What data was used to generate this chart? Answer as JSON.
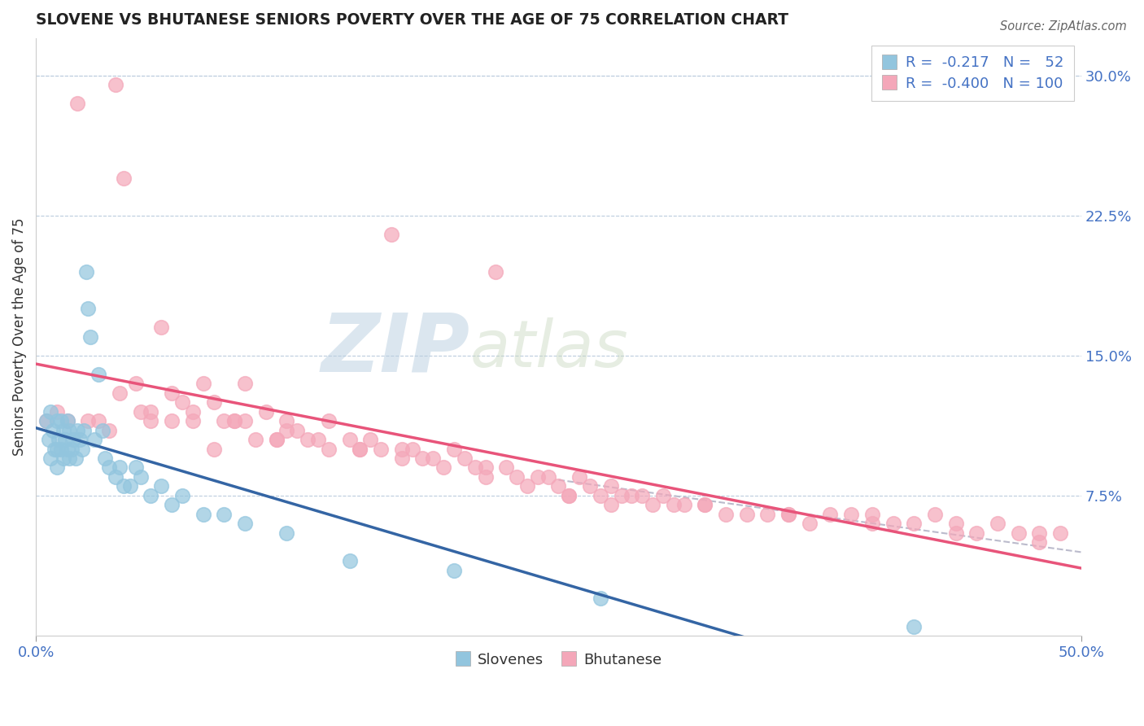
{
  "title": "SLOVENE VS BHUTANESE SENIORS POVERTY OVER THE AGE OF 75 CORRELATION CHART",
  "source": "Source: ZipAtlas.com",
  "ylabel": "Seniors Poverty Over the Age of 75",
  "right_yticks": [
    "7.5%",
    "15.0%",
    "22.5%",
    "30.0%"
  ],
  "right_ytick_vals": [
    0.075,
    0.15,
    0.225,
    0.3
  ],
  "legend_label1": "Slovenes",
  "legend_label2": "Bhutanese",
  "legend_R1_val": "-0.217",
  "legend_N1_val": "52",
  "legend_R2_val": "-0.400",
  "legend_N2_val": "100",
  "color_slovene": "#92C5DE",
  "color_bhutanese": "#F4A7B9",
  "color_line_slovene": "#3465A4",
  "color_line_bhutanese": "#E8547A",
  "color_line_combined": "#BBBBCC",
  "watermark": "ZIPatlas",
  "xlim": [
    0.0,
    0.5
  ],
  "ylim": [
    0.0,
    0.32
  ],
  "slovene_x": [
    0.005,
    0.006,
    0.007,
    0.007,
    0.008,
    0.009,
    0.01,
    0.01,
    0.01,
    0.011,
    0.012,
    0.012,
    0.013,
    0.013,
    0.014,
    0.015,
    0.015,
    0.016,
    0.016,
    0.017,
    0.018,
    0.019,
    0.02,
    0.021,
    0.022,
    0.023,
    0.024,
    0.025,
    0.026,
    0.028,
    0.03,
    0.032,
    0.033,
    0.035,
    0.038,
    0.04,
    0.042,
    0.045,
    0.048,
    0.05,
    0.055,
    0.06,
    0.065,
    0.07,
    0.08,
    0.09,
    0.1,
    0.12,
    0.15,
    0.2,
    0.27,
    0.42
  ],
  "slovene_y": [
    0.115,
    0.105,
    0.12,
    0.095,
    0.11,
    0.1,
    0.115,
    0.1,
    0.09,
    0.105,
    0.115,
    0.1,
    0.11,
    0.095,
    0.105,
    0.115,
    0.1,
    0.11,
    0.095,
    0.1,
    0.105,
    0.095,
    0.11,
    0.105,
    0.1,
    0.11,
    0.195,
    0.175,
    0.16,
    0.105,
    0.14,
    0.11,
    0.095,
    0.09,
    0.085,
    0.09,
    0.08,
    0.08,
    0.09,
    0.085,
    0.075,
    0.08,
    0.07,
    0.075,
    0.065,
    0.065,
    0.06,
    0.055,
    0.04,
    0.035,
    0.02,
    0.005
  ],
  "bhutanese_x": [
    0.038,
    0.042,
    0.04,
    0.048,
    0.05,
    0.055,
    0.06,
    0.065,
    0.065,
    0.07,
    0.075,
    0.08,
    0.085,
    0.085,
    0.09,
    0.095,
    0.1,
    0.1,
    0.105,
    0.11,
    0.115,
    0.12,
    0.12,
    0.125,
    0.13,
    0.14,
    0.14,
    0.15,
    0.155,
    0.16,
    0.165,
    0.17,
    0.175,
    0.18,
    0.185,
    0.19,
    0.2,
    0.205,
    0.21,
    0.215,
    0.22,
    0.225,
    0.23,
    0.24,
    0.245,
    0.25,
    0.255,
    0.26,
    0.265,
    0.27,
    0.275,
    0.28,
    0.285,
    0.29,
    0.295,
    0.3,
    0.305,
    0.31,
    0.32,
    0.33,
    0.34,
    0.35,
    0.36,
    0.37,
    0.38,
    0.39,
    0.4,
    0.41,
    0.42,
    0.43,
    0.44,
    0.45,
    0.46,
    0.47,
    0.48,
    0.005,
    0.01,
    0.015,
    0.02,
    0.025,
    0.03,
    0.035,
    0.055,
    0.075,
    0.095,
    0.115,
    0.135,
    0.155,
    0.175,
    0.195,
    0.215,
    0.235,
    0.255,
    0.275,
    0.32,
    0.36,
    0.4,
    0.44,
    0.48,
    0.49
  ],
  "bhutanese_y": [
    0.295,
    0.245,
    0.13,
    0.135,
    0.12,
    0.12,
    0.165,
    0.115,
    0.13,
    0.125,
    0.12,
    0.135,
    0.125,
    0.1,
    0.115,
    0.115,
    0.135,
    0.115,
    0.105,
    0.12,
    0.105,
    0.11,
    0.115,
    0.11,
    0.105,
    0.115,
    0.1,
    0.105,
    0.1,
    0.105,
    0.1,
    0.215,
    0.1,
    0.1,
    0.095,
    0.095,
    0.1,
    0.095,
    0.09,
    0.09,
    0.195,
    0.09,
    0.085,
    0.085,
    0.085,
    0.08,
    0.075,
    0.085,
    0.08,
    0.075,
    0.08,
    0.075,
    0.075,
    0.075,
    0.07,
    0.075,
    0.07,
    0.07,
    0.07,
    0.065,
    0.065,
    0.065,
    0.065,
    0.06,
    0.065,
    0.065,
    0.065,
    0.06,
    0.06,
    0.065,
    0.06,
    0.055,
    0.06,
    0.055,
    0.055,
    0.115,
    0.12,
    0.115,
    0.285,
    0.115,
    0.115,
    0.11,
    0.115,
    0.115,
    0.115,
    0.105,
    0.105,
    0.1,
    0.095,
    0.09,
    0.085,
    0.08,
    0.075,
    0.07,
    0.07,
    0.065,
    0.06,
    0.055,
    0.05,
    0.055
  ]
}
